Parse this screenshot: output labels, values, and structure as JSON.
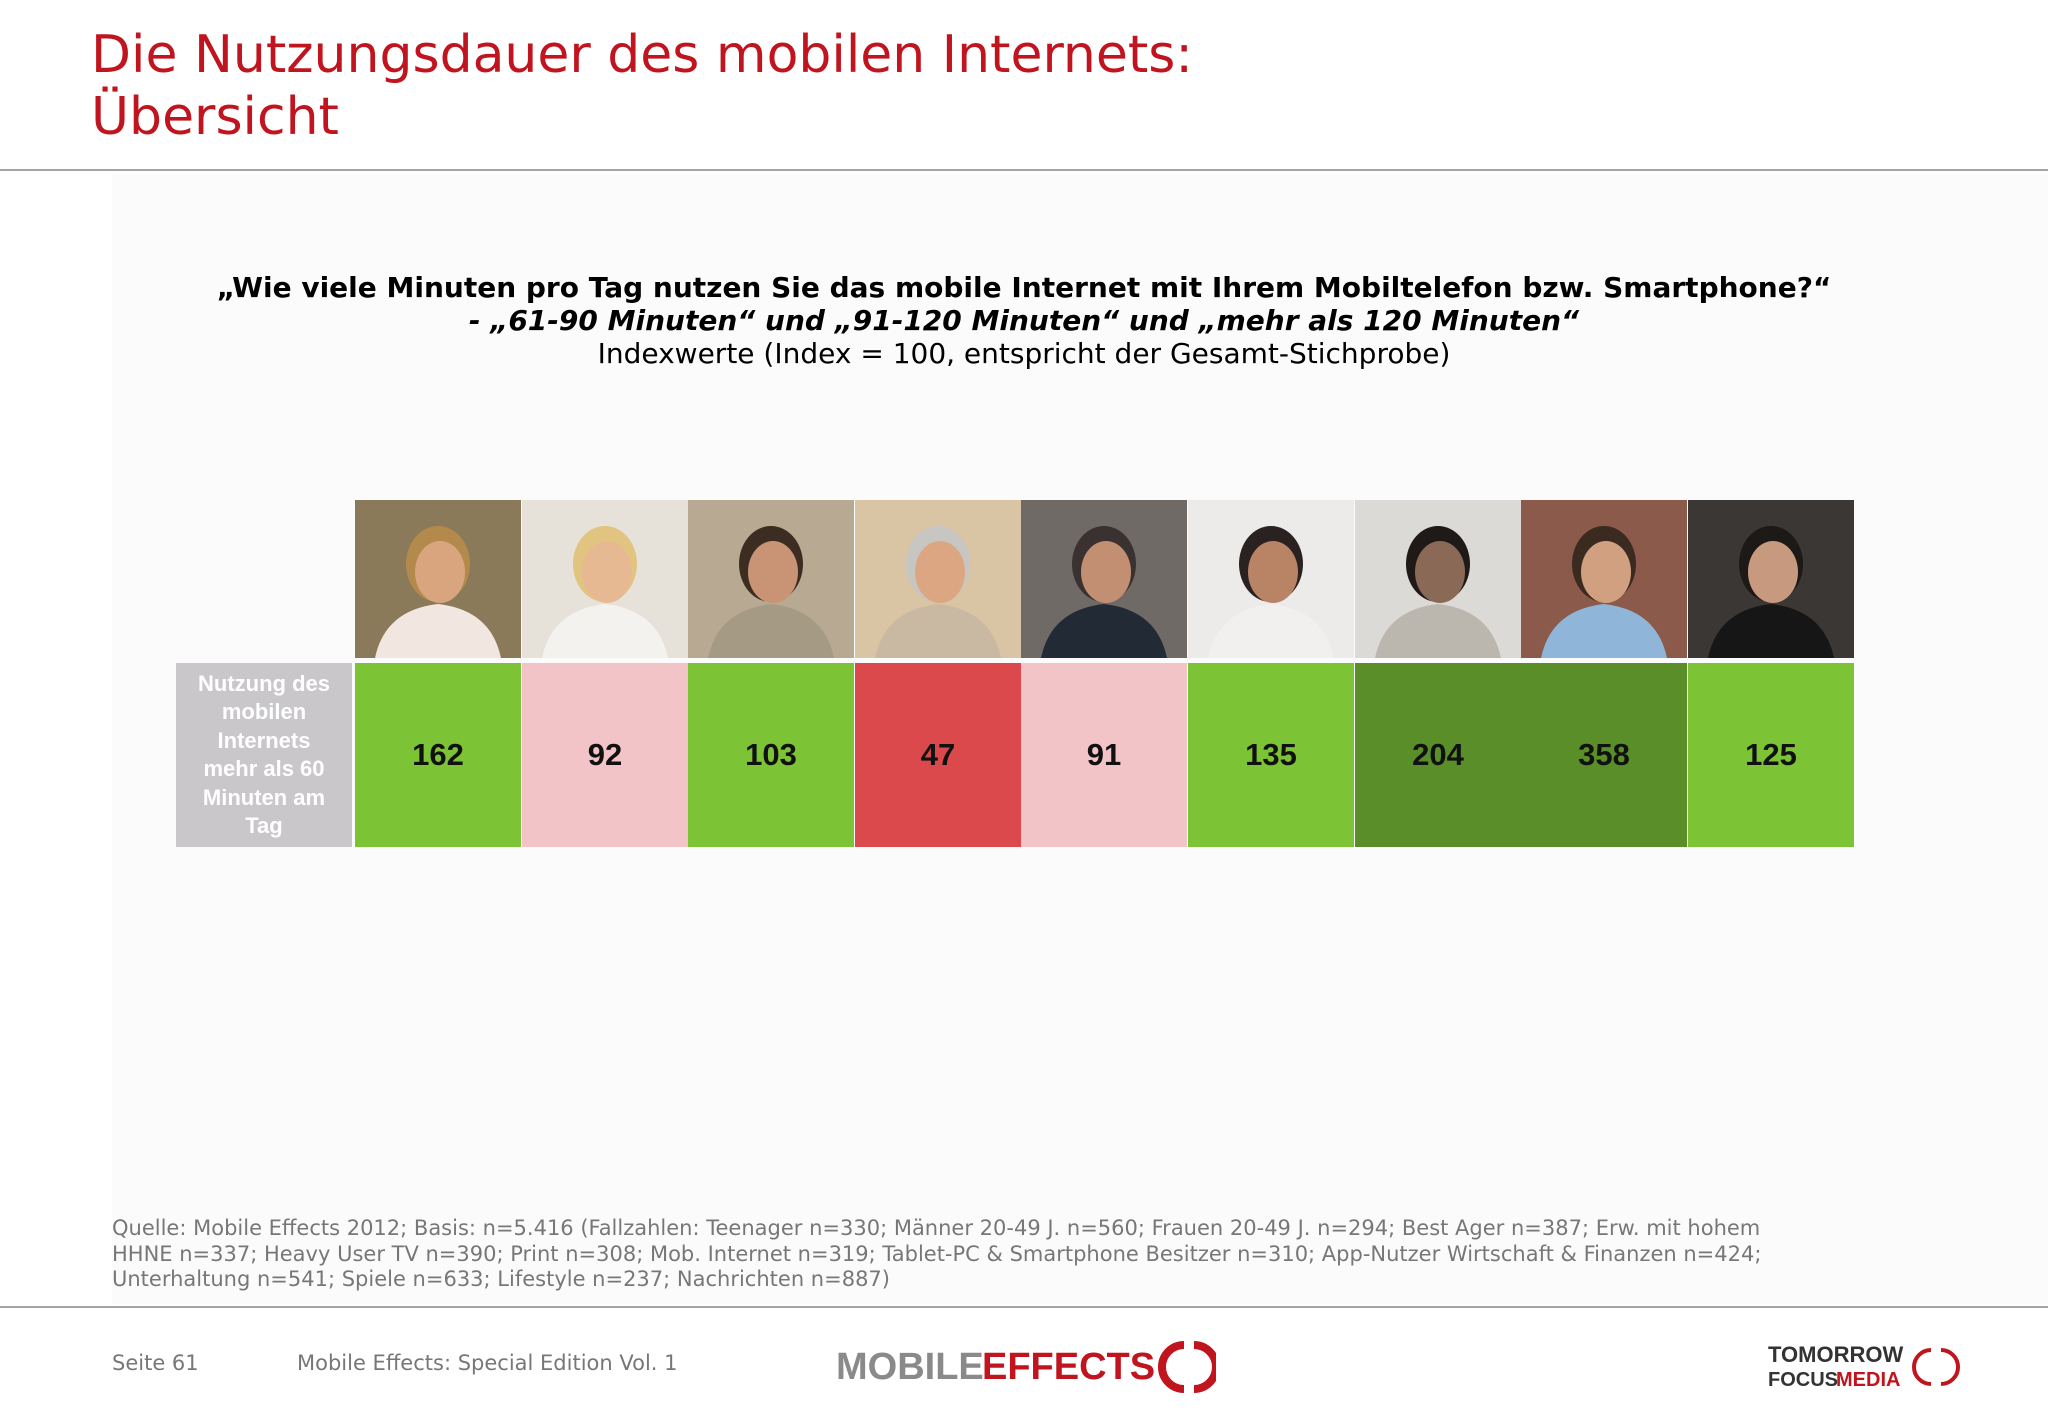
{
  "title": {
    "line1": "Die Nutzungsdauer des mobilen Internets:",
    "line2": "Übersicht"
  },
  "question": {
    "line1": "„Wie viele Minuten pro Tag nutzen Sie das mobile Internet mit Ihrem Mobiltelefon bzw. Smartphone?“",
    "line2": "- „61-90 Minuten“ und „91-120 Minuten“ und „mehr als 120 Minuten“",
    "line3": "Indexwerte (Index = 100, entspricht der Gesamt-Stichprobe)"
  },
  "chart_data": {
    "type": "table",
    "row_label": "Nutzung des mobilen Internets mehr als 60 Minuten am Tag",
    "values": [
      162,
      92,
      103,
      47,
      91,
      135,
      204,
      358,
      125
    ],
    "columns": [
      {
        "photo": "teen-girl-smartphone-photo",
        "value": 162,
        "color": "#7cc336"
      },
      {
        "photo": "woman-smartphone-photo",
        "value": 92,
        "color": "#f2c4c7"
      },
      {
        "photo": "man-phone-call-photo",
        "value": 103,
        "color": "#7cc336"
      },
      {
        "photo": "senior-couple-photo",
        "value": 47,
        "color": "#dc494c"
      },
      {
        "photo": "businessman-phone-photo",
        "value": 91,
        "color": "#f2c4c7"
      },
      {
        "photo": "young-man-tv-photo",
        "value": 135,
        "color": "#7cc336"
      },
      {
        "photo": "man-newspaper-photo",
        "value": 204,
        "color": "#5a8e28"
      },
      {
        "photo": "young-man-tablet-photo",
        "value": 358,
        "color": "#5a8e28"
      },
      {
        "photo": "man-lifestyle-smartphone-photo",
        "value": 125,
        "color": "#7cc336"
      }
    ]
  },
  "source": {
    "line1": "Quelle: Mobile Effects 2012; Basis: n=5.416 (Fallzahlen: Teenager n=330; Männer 20-49 J. n=560; Frauen 20-49 J. n=294; Best Ager n=387; Erw. mit hohem",
    "line2": "HHNE n=337; Heavy User TV n=390; Print n=308; Mob. Internet n=319; Tablet-PC & Smartphone Besitzer n=310; App-Nutzer Wirtschaft & Finanzen n=424;",
    "line3": "Unterhaltung n=541; Spiele n=633; Lifestyle n=237; Nachrichten n=887)"
  },
  "footer": {
    "page": "Seite 61",
    "publication": "Mobile Effects: Special Edition Vol. 1"
  },
  "logos": {
    "mobile_effects": {
      "part1": "MOBILE",
      "part2": "EFFECTS"
    },
    "tomorrow_focus": {
      "line1": "TOMORROW",
      "line2a": "FOCUS",
      "line2b": "MEDIA"
    }
  }
}
